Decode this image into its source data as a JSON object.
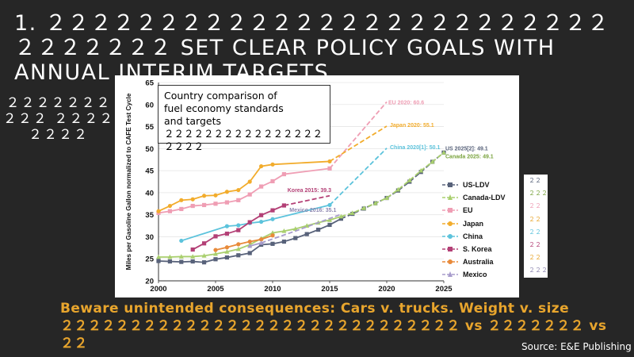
{
  "slide": {
    "title": "1. ２２２２２２２２２２２２２２２２２２２２２２２２２２２２２２２２ SET CLEAR POLICY GOALS WITH ANNUAL INTERIM TARGETS",
    "side_text": "２２２２２２２２２２ ２２２２２２２２",
    "warning_en": "Beware unintended consequences: Cars v. trucks.  Weight v. size",
    "warning_cn": "２２２２２２２２２２２２２２２２２２２２２２２２２２２２２ vs ２２２２２２２ vs ２２",
    "source": "Source: E&E Publishing"
  },
  "callout": {
    "line1": "Country comparison of",
    "line2": "fuel economy standards",
    "line3": "and targets",
    "line4": "２２２２２２２２２２２２２２２２２２２２"
  },
  "cn_legend": [
    "２２",
    "２２２",
    "２２",
    "２２",
    "２２",
    "２２",
    "２２",
    "２２２"
  ],
  "colors": {
    "background": "#262626",
    "accent": "#e8a52d"
  },
  "chart_data": {
    "type": "line",
    "title": "Country comparison of fuel economy standards and targets",
    "xlabel": "",
    "ylabel": "Miles per Gasoline Gallon normalized to CAFE Test Cycle",
    "xlim": [
      2000,
      2025
    ],
    "ylim": [
      20,
      65
    ],
    "xticks": [
      2000,
      2005,
      2010,
      2015,
      2020,
      2025
    ],
    "yticks": [
      20,
      25,
      30,
      35,
      40,
      45,
      50,
      55,
      60,
      65
    ],
    "series": [
      {
        "name": "US-LDV",
        "color": "#58627a",
        "marker": "square",
        "actual": [
          [
            2000,
            24.5
          ],
          [
            2001,
            24.4
          ],
          [
            2002,
            24.3
          ],
          [
            2003,
            24.4
          ],
          [
            2004,
            24.2
          ],
          [
            2005,
            24.9
          ],
          [
            2006,
            25.3
          ],
          [
            2007,
            25.8
          ],
          [
            2008,
            26.3
          ],
          [
            2009,
            28.2
          ],
          [
            2010,
            28.4
          ],
          [
            2011,
            28.9
          ],
          [
            2012,
            29.7
          ],
          [
            2013,
            30.6
          ],
          [
            2014,
            31.6
          ],
          [
            2015,
            32.7
          ],
          [
            2016,
            34.1
          ]
        ],
        "target": [
          [
            2016,
            34.1
          ],
          [
            2017,
            35.2
          ],
          [
            2018,
            36.4
          ],
          [
            2019,
            37.6
          ],
          [
            2020,
            38.8
          ],
          [
            2021,
            40.5
          ],
          [
            2022,
            42.5
          ],
          [
            2023,
            44.7
          ],
          [
            2024,
            47.0
          ],
          [
            2025,
            49.1
          ]
        ]
      },
      {
        "name": "Canada-LDV",
        "color": "#a9cf6e",
        "marker": "triangle",
        "actual": [
          [
            2000,
            25.4
          ],
          [
            2001,
            25.4
          ],
          [
            2002,
            25.5
          ],
          [
            2003,
            25.5
          ],
          [
            2004,
            25.7
          ],
          [
            2005,
            26.1
          ],
          [
            2006,
            26.6
          ],
          [
            2007,
            27.2
          ],
          [
            2008,
            28.2
          ],
          [
            2009,
            29.6
          ],
          [
            2010,
            30.9
          ],
          [
            2011,
            31.3
          ],
          [
            2012,
            31.8
          ],
          [
            2013,
            32.5
          ],
          [
            2014,
            33.2
          ],
          [
            2015,
            33.8
          ],
          [
            2016,
            34.6
          ]
        ],
        "target": [
          [
            2016,
            34.6
          ],
          [
            2017,
            35.4
          ],
          [
            2018,
            36.5
          ],
          [
            2019,
            37.6
          ],
          [
            2020,
            38.8
          ],
          [
            2021,
            40.7
          ],
          [
            2022,
            42.8
          ],
          [
            2023,
            45.0
          ],
          [
            2024,
            47.0
          ],
          [
            2025,
            49.1
          ]
        ]
      },
      {
        "name": "EU",
        "color": "#ef9eb4",
        "marker": "square",
        "actual": [
          [
            2000,
            35.4
          ],
          [
            2001,
            35.8
          ],
          [
            2002,
            36.3
          ],
          [
            2003,
            37.0
          ],
          [
            2004,
            37.2
          ],
          [
            2005,
            37.5
          ],
          [
            2006,
            37.8
          ],
          [
            2007,
            38.3
          ],
          [
            2008,
            39.6
          ],
          [
            2009,
            41.4
          ],
          [
            2010,
            42.6
          ],
          [
            2011,
            44.2
          ],
          [
            2015,
            45.5
          ]
        ],
        "target": [
          [
            2015,
            45.5
          ],
          [
            2020,
            60.6
          ]
        ]
      },
      {
        "name": "Japan",
        "color": "#f2ac2c",
        "marker": "circle",
        "actual": [
          [
            2000,
            35.8
          ],
          [
            2001,
            37.0
          ],
          [
            2002,
            38.3
          ],
          [
            2003,
            38.5
          ],
          [
            2004,
            39.3
          ],
          [
            2005,
            39.4
          ],
          [
            2006,
            40.2
          ],
          [
            2007,
            40.6
          ],
          [
            2008,
            42.5
          ],
          [
            2009,
            46.0
          ],
          [
            2010,
            46.4
          ],
          [
            2015,
            47.1
          ]
        ],
        "target": [
          [
            2015,
            47.1
          ],
          [
            2020,
            55.1
          ]
        ]
      },
      {
        "name": "China",
        "color": "#5cc3dc",
        "marker": "circle",
        "actual": [
          [
            2002,
            29.1
          ],
          [
            2006,
            32.4
          ],
          [
            2007,
            32.6
          ],
          [
            2008,
            33.1
          ],
          [
            2009,
            33.4
          ],
          [
            2010,
            34.0
          ],
          [
            2015,
            37.2
          ]
        ],
        "target": [
          [
            2015,
            37.2
          ],
          [
            2020,
            50.1
          ]
        ]
      },
      {
        "name": "S. Korea",
        "color": "#b34076",
        "marker": "square",
        "actual": [
          [
            2003,
            27.1
          ],
          [
            2004,
            28.5
          ],
          [
            2005,
            30.1
          ],
          [
            2006,
            30.7
          ],
          [
            2007,
            31.5
          ],
          [
            2008,
            33.3
          ],
          [
            2009,
            34.9
          ],
          [
            2010,
            36.0
          ],
          [
            2011,
            37.1
          ]
        ],
        "target": [
          [
            2011,
            37.1
          ],
          [
            2015,
            39.3
          ]
        ]
      },
      {
        "name": "Australia",
        "color": "#e88a3a",
        "marker": "circle",
        "actual": [
          [
            2005,
            27.0
          ],
          [
            2006,
            27.6
          ],
          [
            2007,
            28.3
          ],
          [
            2008,
            28.9
          ],
          [
            2009,
            29.4
          ],
          [
            2010,
            30.3
          ]
        ],
        "target": []
      },
      {
        "name": "Mexico",
        "color": "#a79ccc",
        "marker": "triangle",
        "actual": [
          [
            2008,
            27.9
          ],
          [
            2009,
            28.6
          ]
        ],
        "target": [
          [
            2009,
            28.6
          ],
          [
            2012,
            31.3
          ],
          [
            2016,
            35.1
          ]
        ]
      }
    ],
    "annotations": [
      {
        "text": "EU 2020: 60.6",
        "x": 2020,
        "y": 60.6,
        "color": "#ef9eb4"
      },
      {
        "text": "Japan 2020: 55.1",
        "x": 2020,
        "y": 55.1,
        "color": "#f2ac2c"
      },
      {
        "text": "China 2020[1]: 50.1",
        "x": 2020,
        "y": 50.1,
        "color": "#5cc3dc"
      },
      {
        "text": "US 2025[2]: 49.1",
        "x": 2025,
        "y": 49.1,
        "color": "#58627a"
      },
      {
        "text": "Canada 2025: 49.1",
        "x": 2025,
        "y": 49.1,
        "color": "#7aa33e"
      },
      {
        "text": "Korea 2015: 39.3",
        "x": 2015,
        "y": 39.3,
        "color": "#b34076"
      },
      {
        "text": "Mexico 2016: 35.1",
        "x": 2016,
        "y": 35.1,
        "color": "#8d86b0"
      }
    ]
  }
}
